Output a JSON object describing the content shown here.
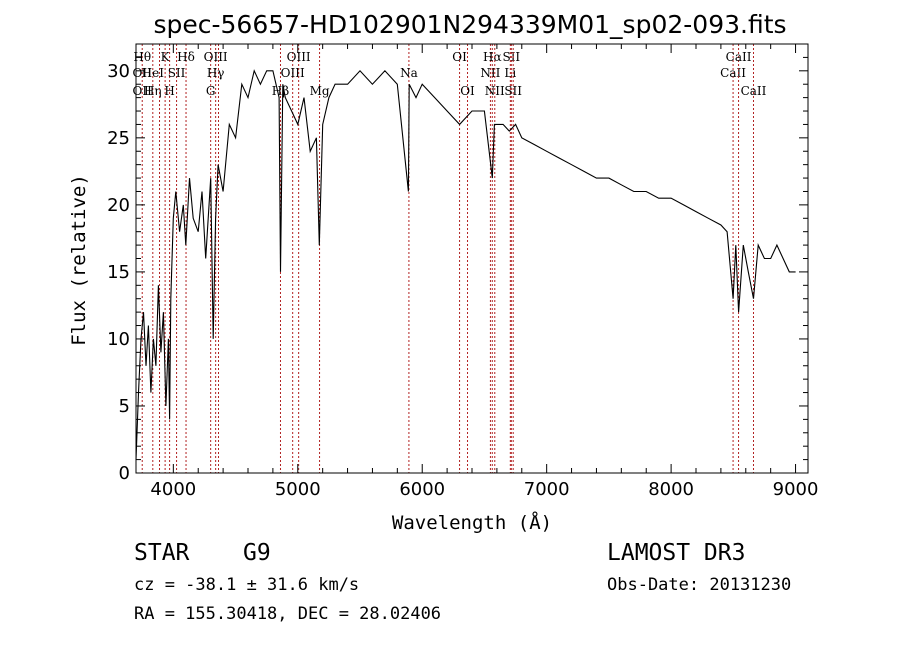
{
  "chart_data": {
    "type": "line",
    "title": "spec-56657-HD102901N294339M01_sp02-093.fits",
    "xlabel": "Wavelength (Å)",
    "ylabel": "Flux (relative)",
    "xlim": [
      3700,
      9100
    ],
    "ylim": [
      0,
      32
    ],
    "xticks": [
      4000,
      5000,
      6000,
      7000,
      8000,
      9000
    ],
    "yticks": [
      0,
      5,
      10,
      15,
      20,
      25,
      30
    ],
    "grid": false,
    "series": [
      {
        "x": [
          3700,
          3720,
          3740,
          3760,
          3780,
          3800,
          3820,
          3840,
          3860,
          3880,
          3900,
          3920,
          3940,
          3960,
          3970,
          3980,
          4000,
          4020,
          4050,
          4080,
          4100,
          4130,
          4160,
          4200,
          4230,
          4260,
          4300,
          4320,
          4340,
          4360,
          4400,
          4450,
          4500,
          4550,
          4600,
          4650,
          4700,
          4750,
          4800,
          4850,
          4861,
          4880,
          4900,
          4950,
          5000,
          5050,
          5100,
          5150,
          5173,
          5200,
          5250,
          5300,
          5400,
          5500,
          5600,
          5700,
          5800,
          5889,
          5895,
          5950,
          6000,
          6100,
          6200,
          6300,
          6400,
          6500,
          6563,
          6580,
          6650,
          6700,
          6750,
          6800,
          6900,
          7000,
          7100,
          7200,
          7300,
          7400,
          7500,
          7600,
          7700,
          7800,
          7900,
          8000,
          8100,
          8200,
          8300,
          8400,
          8450,
          8498,
          8520,
          8542,
          8580,
          8620,
          8662,
          8700,
          8750,
          8800,
          8850,
          8900,
          8950,
          9000
        ],
        "y": [
          1,
          6,
          10,
          12,
          8,
          11,
          6,
          10,
          8,
          14,
          9,
          12,
          5,
          10,
          4,
          13,
          19,
          21,
          18,
          20,
          17,
          22,
          19,
          18,
          21,
          16,
          22,
          10,
          19,
          23,
          21,
          26,
          25,
          29,
          28,
          30,
          29,
          30,
          30,
          28,
          15,
          29,
          28,
          27,
          26,
          28,
          24,
          25,
          17,
          26,
          28,
          29,
          29,
          30,
          29,
          30,
          29,
          21,
          29,
          28,
          29,
          28,
          27,
          26,
          27,
          27,
          22,
          26,
          26,
          25.5,
          26,
          25,
          24.5,
          24,
          23.5,
          23,
          22.5,
          22,
          22,
          21.5,
          21,
          21,
          20.5,
          20.5,
          20,
          19.5,
          19,
          18.5,
          18,
          13,
          17,
          12,
          17,
          15,
          13,
          17,
          16,
          16,
          17,
          16,
          15,
          15
        ]
      }
    ],
    "lines": [
      {
        "x": 3750,
        "labels": [
          "Hθ",
          "OII",
          "OII"
        ]
      },
      {
        "x": 3835,
        "labels": [
          "",
          "HeI",
          "Hη"
        ]
      },
      {
        "x": 3889,
        "labels": [
          "",
          "",
          ""
        ]
      },
      {
        "x": 3934,
        "labels": [
          "K",
          "",
          ""
        ]
      },
      {
        "x": 3970,
        "labels": [
          "",
          "",
          "H"
        ]
      },
      {
        "x": 4026,
        "labels": [
          "",
          "SII",
          ""
        ]
      },
      {
        "x": 4102,
        "labels": [
          "Hδ",
          "",
          ""
        ]
      },
      {
        "x": 4300,
        "labels": [
          "",
          "",
          "G"
        ]
      },
      {
        "x": 4340,
        "labels": [
          "OIII",
          "Hγ",
          ""
        ]
      },
      {
        "x": 4363,
        "labels": [
          "",
          "",
          ""
        ]
      },
      {
        "x": 4861,
        "labels": [
          "",
          "",
          "Hβ"
        ]
      },
      {
        "x": 4959,
        "labels": [
          "",
          "OIII",
          ""
        ]
      },
      {
        "x": 5007,
        "labels": [
          "OIII",
          "",
          ""
        ]
      },
      {
        "x": 5175,
        "labels": [
          "",
          "",
          "Mg"
        ]
      },
      {
        "x": 5893,
        "labels": [
          "",
          "Na",
          ""
        ]
      },
      {
        "x": 6300,
        "labels": [
          "OI",
          "",
          ""
        ]
      },
      {
        "x": 6364,
        "labels": [
          "",
          "",
          "OI"
        ]
      },
      {
        "x": 6548,
        "labels": [
          "",
          "NII",
          ""
        ]
      },
      {
        "x": 6563,
        "labels": [
          "Hα",
          "",
          ""
        ]
      },
      {
        "x": 6583,
        "labels": [
          "",
          "",
          "NII"
        ]
      },
      {
        "x": 6708,
        "labels": [
          "",
          "Li",
          ""
        ]
      },
      {
        "x": 6716,
        "labels": [
          "SII",
          "",
          ""
        ]
      },
      {
        "x": 6731,
        "labels": [
          "",
          "",
          "SII"
        ]
      },
      {
        "x": 8498,
        "labels": [
          "",
          "CaII",
          ""
        ]
      },
      {
        "x": 8542,
        "labels": [
          "CaII",
          "",
          ""
        ]
      },
      {
        "x": 8662,
        "labels": [
          "",
          "",
          "CaII"
        ]
      }
    ]
  },
  "info": {
    "object_class": "STAR",
    "subclass": "G9",
    "survey": "LAMOST DR3",
    "cz": "cz = -38.1 ± 31.6 km/s",
    "obs_date": "Obs-Date: 20131230",
    "coords": "RA = 155.30418, DEC =  28.02406"
  }
}
